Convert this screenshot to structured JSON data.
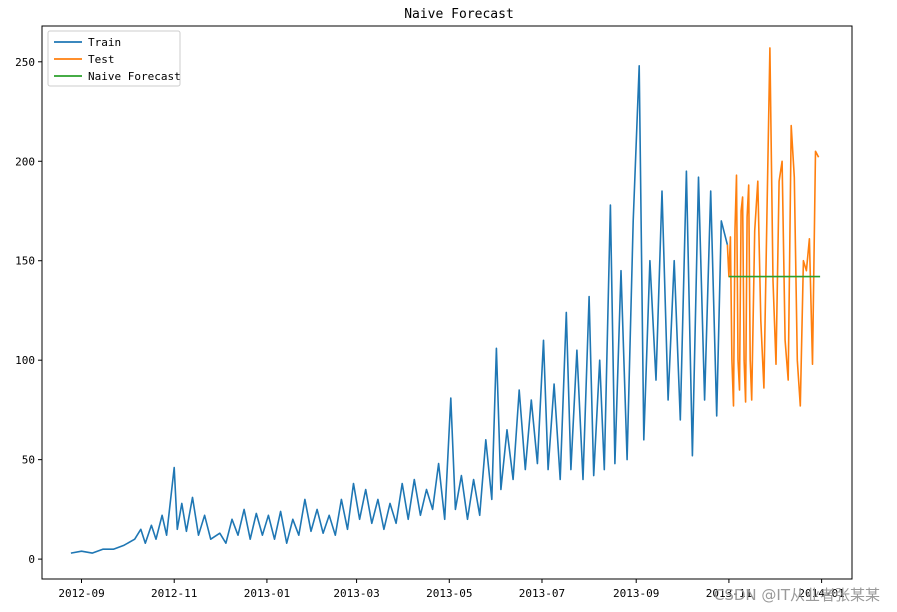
{
  "chart_data": {
    "type": "line",
    "title": "Naive Forecast",
    "xlabel": "",
    "ylabel": "",
    "x_type": "date",
    "xlim": [
      "2012-08-06",
      "2014-01-21"
    ],
    "ylim": [
      -10,
      268
    ],
    "x_ticks": [
      {
        "date": "2012-09-01",
        "label": "2012-09"
      },
      {
        "date": "2012-11-01",
        "label": "2012-11"
      },
      {
        "date": "2013-01-01",
        "label": "2013-01"
      },
      {
        "date": "2013-03-01",
        "label": "2013-03"
      },
      {
        "date": "2013-05-01",
        "label": "2013-05"
      },
      {
        "date": "2013-07-01",
        "label": "2013-07"
      },
      {
        "date": "2013-09-01",
        "label": "2013-09"
      },
      {
        "date": "2013-11-01",
        "label": "2013-11"
      },
      {
        "date": "2014-01-01",
        "label": "2014-01"
      }
    ],
    "y_ticks": [
      0,
      50,
      100,
      150,
      200,
      250
    ],
    "grid": false,
    "legend_position": "upper-left",
    "series": [
      {
        "name": "Train",
        "color": "#1f77b4",
        "points": [
          [
            "2012-08-25",
            3
          ],
          [
            "2012-09-01",
            4
          ],
          [
            "2012-09-08",
            3
          ],
          [
            "2012-09-15",
            5
          ],
          [
            "2012-09-22",
            5
          ],
          [
            "2012-09-29",
            7
          ],
          [
            "2012-10-06",
            10
          ],
          [
            "2012-10-10",
            15
          ],
          [
            "2012-10-13",
            8
          ],
          [
            "2012-10-17",
            17
          ],
          [
            "2012-10-20",
            10
          ],
          [
            "2012-10-24",
            22
          ],
          [
            "2012-10-27",
            12
          ],
          [
            "2012-11-01",
            46
          ],
          [
            "2012-11-03",
            15
          ],
          [
            "2012-11-06",
            28
          ],
          [
            "2012-11-09",
            14
          ],
          [
            "2012-11-13",
            31
          ],
          [
            "2012-11-17",
            12
          ],
          [
            "2012-11-21",
            22
          ],
          [
            "2012-11-25",
            10
          ],
          [
            "2012-12-01",
            13
          ],
          [
            "2012-12-05",
            8
          ],
          [
            "2012-12-09",
            20
          ],
          [
            "2012-12-13",
            12
          ],
          [
            "2012-12-17",
            25
          ],
          [
            "2012-12-21",
            10
          ],
          [
            "2012-12-25",
            23
          ],
          [
            "2012-12-29",
            12
          ],
          [
            "2013-01-02",
            22
          ],
          [
            "2013-01-06",
            10
          ],
          [
            "2013-01-10",
            24
          ],
          [
            "2013-01-14",
            8
          ],
          [
            "2013-01-18",
            20
          ],
          [
            "2013-01-22",
            12
          ],
          [
            "2013-01-26",
            30
          ],
          [
            "2013-01-30",
            14
          ],
          [
            "2013-02-03",
            25
          ],
          [
            "2013-02-07",
            13
          ],
          [
            "2013-02-11",
            22
          ],
          [
            "2013-02-15",
            12
          ],
          [
            "2013-02-19",
            30
          ],
          [
            "2013-02-23",
            15
          ],
          [
            "2013-02-27",
            38
          ],
          [
            "2013-03-03",
            20
          ],
          [
            "2013-03-07",
            35
          ],
          [
            "2013-03-11",
            18
          ],
          [
            "2013-03-15",
            30
          ],
          [
            "2013-03-19",
            15
          ],
          [
            "2013-03-23",
            28
          ],
          [
            "2013-03-27",
            18
          ],
          [
            "2013-03-31",
            38
          ],
          [
            "2013-04-04",
            20
          ],
          [
            "2013-04-08",
            40
          ],
          [
            "2013-04-12",
            22
          ],
          [
            "2013-04-16",
            35
          ],
          [
            "2013-04-20",
            25
          ],
          [
            "2013-04-24",
            48
          ],
          [
            "2013-04-28",
            20
          ],
          [
            "2013-05-02",
            81
          ],
          [
            "2013-05-05",
            25
          ],
          [
            "2013-05-09",
            42
          ],
          [
            "2013-05-13",
            20
          ],
          [
            "2013-05-17",
            40
          ],
          [
            "2013-05-21",
            22
          ],
          [
            "2013-05-25",
            60
          ],
          [
            "2013-05-29",
            30
          ],
          [
            "2013-06-01",
            106
          ],
          [
            "2013-06-04",
            35
          ],
          [
            "2013-06-08",
            65
          ],
          [
            "2013-06-12",
            40
          ],
          [
            "2013-06-16",
            85
          ],
          [
            "2013-06-20",
            45
          ],
          [
            "2013-06-24",
            80
          ],
          [
            "2013-06-28",
            48
          ],
          [
            "2013-07-02",
            110
          ],
          [
            "2013-07-05",
            45
          ],
          [
            "2013-07-09",
            88
          ],
          [
            "2013-07-13",
            40
          ],
          [
            "2013-07-17",
            124
          ],
          [
            "2013-07-20",
            45
          ],
          [
            "2013-07-24",
            105
          ],
          [
            "2013-07-28",
            40
          ],
          [
            "2013-08-01",
            132
          ],
          [
            "2013-08-04",
            42
          ],
          [
            "2013-08-08",
            100
          ],
          [
            "2013-08-11",
            45
          ],
          [
            "2013-08-15",
            178
          ],
          [
            "2013-08-18",
            48
          ],
          [
            "2013-08-22",
            145
          ],
          [
            "2013-08-26",
            50
          ],
          [
            "2013-08-30",
            170
          ],
          [
            "2013-09-03",
            248
          ],
          [
            "2013-09-06",
            60
          ],
          [
            "2013-09-10",
            150
          ],
          [
            "2013-09-14",
            90
          ],
          [
            "2013-09-18",
            185
          ],
          [
            "2013-09-22",
            80
          ],
          [
            "2013-09-26",
            150
          ],
          [
            "2013-09-30",
            70
          ],
          [
            "2013-10-04",
            195
          ],
          [
            "2013-10-08",
            52
          ],
          [
            "2013-10-12",
            192
          ],
          [
            "2013-10-16",
            80
          ],
          [
            "2013-10-20",
            185
          ],
          [
            "2013-10-24",
            72
          ],
          [
            "2013-10-27",
            170
          ],
          [
            "2013-10-31",
            158
          ]
        ]
      },
      {
        "name": "Test",
        "color": "#ff7f0e",
        "points": [
          [
            "2013-10-31",
            158
          ],
          [
            "2013-11-01",
            142
          ],
          [
            "2013-11-02",
            162
          ],
          [
            "2013-11-03",
            100
          ],
          [
            "2013-11-04",
            77
          ],
          [
            "2013-11-05",
            166
          ],
          [
            "2013-11-06",
            193
          ],
          [
            "2013-11-07",
            100
          ],
          [
            "2013-11-08",
            85
          ],
          [
            "2013-11-09",
            175
          ],
          [
            "2013-11-10",
            182
          ],
          [
            "2013-11-11",
            100
          ],
          [
            "2013-11-12",
            79
          ],
          [
            "2013-11-13",
            172
          ],
          [
            "2013-11-14",
            188
          ],
          [
            "2013-11-15",
            100
          ],
          [
            "2013-11-16",
            80
          ],
          [
            "2013-11-18",
            165
          ],
          [
            "2013-11-20",
            190
          ],
          [
            "2013-11-22",
            120
          ],
          [
            "2013-11-24",
            86
          ],
          [
            "2013-11-26",
            172
          ],
          [
            "2013-11-28",
            257
          ],
          [
            "2013-11-30",
            140
          ],
          [
            "2013-12-02",
            98
          ],
          [
            "2013-12-04",
            190
          ],
          [
            "2013-12-06",
            200
          ],
          [
            "2013-12-08",
            110
          ],
          [
            "2013-12-10",
            90
          ],
          [
            "2013-12-12",
            218
          ],
          [
            "2013-12-14",
            192
          ],
          [
            "2013-12-16",
            100
          ],
          [
            "2013-12-18",
            77
          ],
          [
            "2013-12-20",
            150
          ],
          [
            "2013-12-22",
            145
          ],
          [
            "2013-12-24",
            161
          ],
          [
            "2013-12-26",
            98
          ],
          [
            "2013-12-28",
            205
          ],
          [
            "2013-12-30",
            202
          ]
        ]
      },
      {
        "name": "Naive Forecast",
        "color": "#2ca02c",
        "points": [
          [
            "2013-11-01",
            142
          ],
          [
            "2013-12-31",
            142
          ]
        ]
      }
    ]
  },
  "watermark": "CSDN @IT从业者张某某"
}
